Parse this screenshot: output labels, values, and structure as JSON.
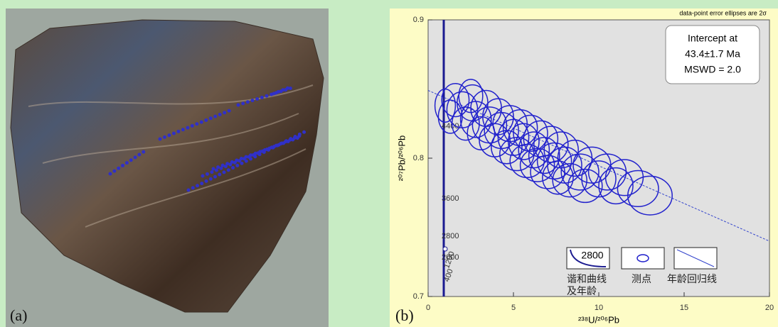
{
  "panel_a": {
    "label": "(a)"
  },
  "chart_data": {
    "type": "scatter",
    "panel_label": "(b)",
    "note": "data-point error ellipses are 2σ",
    "x_label": "²³⁸U/²⁰⁶Pb",
    "y_label": "²⁰⁷Pb/²⁰⁶Pb",
    "annotation": [
      "Intercept at",
      "43.4±1.7 Ma",
      "MSWD = 2.0"
    ],
    "xlim": [
      0,
      20
    ],
    "ylim": [
      0.7,
      0.9
    ],
    "xticks": [
      0,
      5,
      10,
      15,
      20
    ],
    "yticks": [
      0.7,
      0.8,
      0.9
    ],
    "concordia_ages": [
      "4400",
      "3600",
      "2800",
      "2000",
      "1200",
      "400"
    ],
    "regression": {
      "x": [
        0,
        20
      ],
      "values": [
        0.849,
        0.74
      ],
      "color": "#3344cc"
    },
    "series": [
      {
        "color": "#2222cc",
        "x": [
          1.0,
          1.3,
          1.6,
          2.0,
          2.2,
          2.5,
          2.6,
          2.8,
          3.1,
          3.4,
          3.6,
          3.9,
          4.1,
          4.3,
          4.6,
          4.8,
          5.0,
          5.2,
          5.4,
          5.6,
          5.8,
          6.0,
          6.2,
          6.4,
          6.6,
          6.8,
          7.0,
          7.2,
          7.4,
          7.6,
          7.8,
          8.0,
          8.3,
          8.6,
          8.9,
          9.2,
          9.6,
          10.0,
          10.5,
          11.0,
          11.5,
          12.3,
          13.0
        ],
        "values": [
          0.838,
          0.83,
          0.842,
          0.835,
          0.825,
          0.845,
          0.84,
          0.828,
          0.818,
          0.836,
          0.824,
          0.813,
          0.83,
          0.82,
          0.808,
          0.825,
          0.815,
          0.803,
          0.822,
          0.812,
          0.798,
          0.818,
          0.806,
          0.795,
          0.814,
          0.802,
          0.79,
          0.81,
          0.798,
          0.786,
          0.806,
          0.795,
          0.784,
          0.8,
          0.79,
          0.78,
          0.795,
          0.785,
          0.79,
          0.78,
          0.786,
          0.778,
          0.773
        ],
        "x_err": [
          0.6,
          0.7,
          0.8,
          0.9,
          0.8,
          0.7,
          0.9,
          0.9,
          0.8,
          0.9,
          1.0,
          0.9,
          0.9,
          1.0,
          0.9,
          1.0,
          0.9,
          1.0,
          1.0,
          0.9,
          1.0,
          1.0,
          0.9,
          1.0,
          1.0,
          0.9,
          1.0,
          1.0,
          1.0,
          0.9,
          1.0,
          1.0,
          1.0,
          1.0,
          1.1,
          1.0,
          1.1,
          1.0,
          1.1,
          1.0,
          1.1,
          1.2,
          1.3
        ],
        "y_err": [
          0.012,
          0.012,
          0.012,
          0.013,
          0.012,
          0.012,
          0.013,
          0.013,
          0.012,
          0.013,
          0.013,
          0.012,
          0.013,
          0.013,
          0.012,
          0.013,
          0.013,
          0.012,
          0.013,
          0.013,
          0.012,
          0.013,
          0.013,
          0.012,
          0.013,
          0.013,
          0.012,
          0.013,
          0.013,
          0.012,
          0.013,
          0.013,
          0.012,
          0.013,
          0.013,
          0.012,
          0.013,
          0.013,
          0.013,
          0.013,
          0.013,
          0.013,
          0.014
        ]
      }
    ],
    "legend": [
      {
        "sample": "2800",
        "label": [
          "谐和曲线",
          "及年龄"
        ]
      },
      {
        "label": [
          "测点"
        ]
      },
      {
        "label": [
          "年龄回归线"
        ]
      }
    ]
  }
}
